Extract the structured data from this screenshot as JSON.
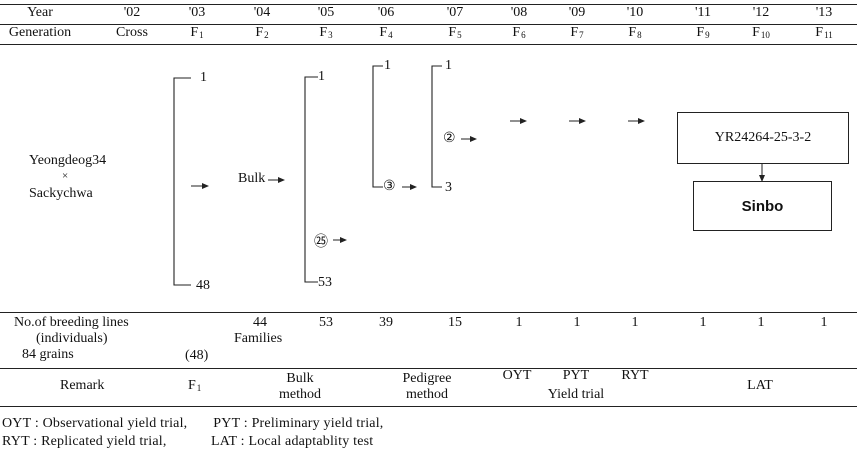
{
  "header": {
    "year_label": "Year",
    "generation_label": "Generation",
    "years": [
      "'02",
      "'03",
      "'04",
      "'05",
      "'06",
      "'07",
      "'08",
      "'09",
      "'10",
      "'11",
      "'12",
      "'13"
    ],
    "generations": [
      {
        "base": "Cross",
        "sub": ""
      },
      {
        "base": "F",
        "sub": "1"
      },
      {
        "base": "F",
        "sub": "2"
      },
      {
        "base": "F",
        "sub": "3"
      },
      {
        "base": "F",
        "sub": "4"
      },
      {
        "base": "F",
        "sub": "5"
      },
      {
        "base": "F",
        "sub": "6"
      },
      {
        "base": "F",
        "sub": "7"
      },
      {
        "base": "F",
        "sub": "8"
      },
      {
        "base": "F",
        "sub": "9"
      },
      {
        "base": "F",
        "sub": "10"
      },
      {
        "base": "F",
        "sub": "11"
      }
    ]
  },
  "diagram": {
    "cross_parent1": "Yeongdeog34",
    "cross_symbol": "×",
    "cross_parent2": "Sackychwa",
    "f1_top": "1",
    "f1_bottom": "48",
    "bulk_label": "Bulk",
    "f3_top": "1",
    "f3_bottom": "53",
    "f3_selected": "㉕",
    "f4_top": "1",
    "f4_selected": "③",
    "f5_top": "1",
    "f5_selected": "②",
    "f5_bottom": "3",
    "line_name": "YR24264-25-3-2",
    "variety_name": "Sinbo"
  },
  "lines_row": {
    "label_line1": "No.of breeding lines",
    "label_line2": "(individuals)",
    "grains": "84 grains",
    "f1_value": "(48)",
    "f2_value": "44",
    "f2_unit": "Families",
    "values": [
      "53",
      "39",
      "15",
      "1",
      "1",
      "1",
      "1",
      "1",
      "1"
    ]
  },
  "remark_row": {
    "label": "Remark",
    "f1": {
      "base": "F",
      "sub": "1"
    },
    "bulk_line1": "Bulk",
    "bulk_line2": "method",
    "pedigree_line1": "Pedigree",
    "pedigree_line2": "method",
    "oyt": "OYT",
    "pyt": "PYT",
    "ryt": "RYT",
    "yield_trial": "Yield trial",
    "lat": "LAT"
  },
  "legend": {
    "line1": "OYT : Observational yield trial,       PYT : Preliminary yield trial,",
    "line2": "RYT : Replicated yield trial,            LAT : Local adaptablity test"
  }
}
